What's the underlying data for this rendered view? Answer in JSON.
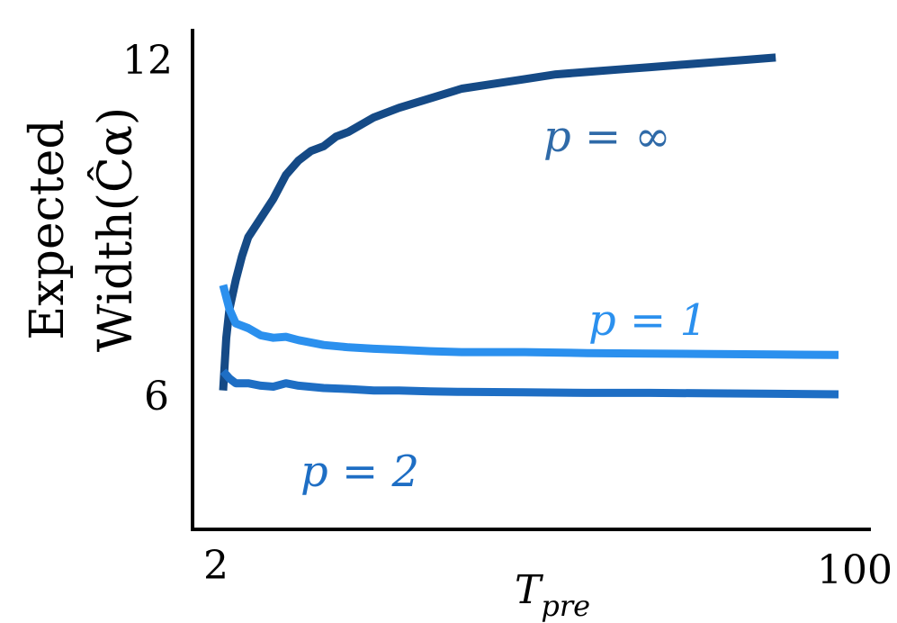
{
  "chart_data": {
    "type": "line",
    "title": "",
    "ylabel": [
      "Expected",
      "Width(Ĉα)"
    ],
    "xlabel": {
      "main": "T",
      "sub": "pre"
    },
    "x_ticks": [
      "2",
      "100"
    ],
    "y_ticks": [
      "6",
      "12"
    ],
    "xlim": [
      2,
      100
    ],
    "ylim": [
      2.3,
      12.6
    ],
    "grid": false,
    "legend": "none",
    "series": [
      {
        "name": "p = ∞",
        "label_text": "p = ∞",
        "color": "#154a86",
        "x": [
          2,
          2.5,
          3,
          4,
          5,
          6,
          8,
          10,
          12,
          14,
          16,
          18,
          20,
          22,
          26,
          30,
          35,
          40,
          45,
          50,
          55,
          60,
          65,
          70,
          75,
          80,
          85,
          90
        ],
        "values": [
          5.2,
          6.3,
          6.9,
          7.5,
          8.0,
          8.4,
          8.8,
          9.2,
          9.7,
          10.0,
          10.2,
          10.3,
          10.5,
          10.6,
          10.9,
          11.1,
          11.3,
          11.5,
          11.6,
          11.7,
          11.8,
          11.85,
          11.9,
          11.95,
          12.0,
          12.05,
          12.1,
          12.15
        ]
      },
      {
        "name": "p = 1",
        "label_text": "p = 1",
        "color": "#2b90ee",
        "x": [
          2,
          3,
          4,
          6,
          8,
          10,
          12,
          14,
          18,
          22,
          26,
          30,
          35,
          40,
          50,
          60,
          70,
          80,
          90,
          100
        ],
        "values": [
          7.4,
          6.9,
          6.6,
          6.5,
          6.35,
          6.3,
          6.32,
          6.25,
          6.15,
          6.1,
          6.07,
          6.05,
          6.02,
          6.0,
          6.0,
          5.98,
          5.97,
          5.96,
          5.95,
          5.94
        ]
      },
      {
        "name": "p = 2",
        "label_text": "p = 2",
        "color": "#1e6ec4",
        "x": [
          2,
          3,
          4,
          6,
          8,
          10,
          12,
          14,
          18,
          22,
          26,
          30,
          35,
          40,
          50,
          60,
          70,
          80,
          90,
          100
        ],
        "values": [
          5.6,
          5.45,
          5.35,
          5.35,
          5.3,
          5.28,
          5.35,
          5.3,
          5.25,
          5.23,
          5.2,
          5.2,
          5.18,
          5.17,
          5.16,
          5.15,
          5.15,
          5.14,
          5.13,
          5.12
        ]
      }
    ]
  }
}
